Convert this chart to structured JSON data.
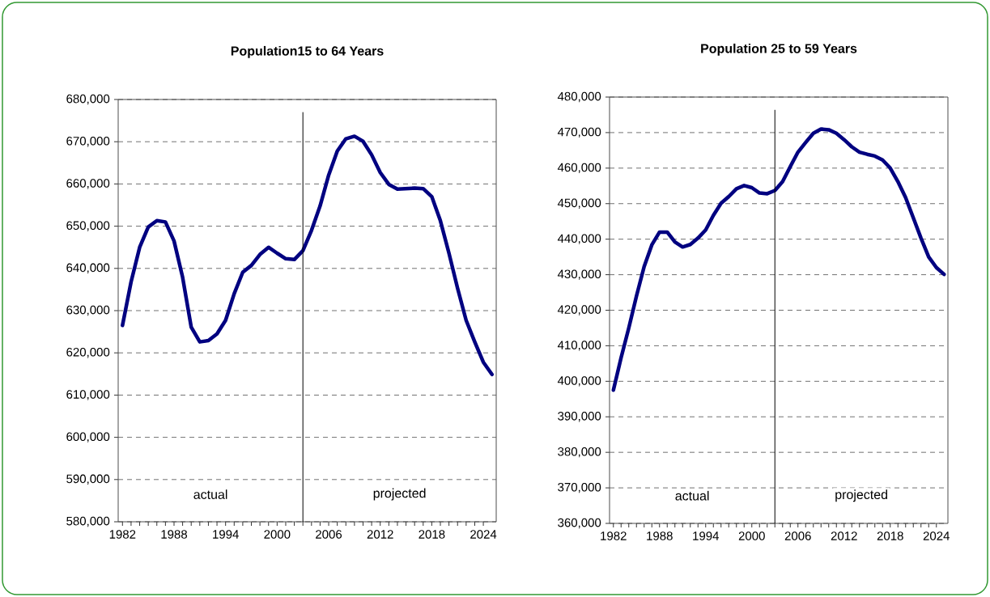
{
  "chart_data": [
    {
      "type": "line",
      "title": "Population15 to 64 Years",
      "x": [
        1982,
        1983,
        1984,
        1985,
        1986,
        1987,
        1988,
        1989,
        1990,
        1991,
        1992,
        1993,
        1994,
        1995,
        1996,
        1997,
        1998,
        1999,
        2000,
        2001,
        2002,
        2003,
        2004,
        2005,
        2006,
        2007,
        2008,
        2009,
        2010,
        2011,
        2012,
        2013,
        2014,
        2015,
        2016,
        2017,
        2018,
        2019,
        2020,
        2021,
        2022,
        2023,
        2024,
        2025
      ],
      "series": [
        {
          "color": "#000080",
          "values": [
            626500,
            636800,
            645000,
            649800,
            651300,
            651000,
            646500,
            637900,
            626100,
            622600,
            622900,
            624500,
            627700,
            634000,
            639100,
            640700,
            643300,
            645000,
            643600,
            642300,
            642100,
            644200,
            649000,
            654800,
            662100,
            667800,
            670700,
            671300,
            670100,
            666900,
            662700,
            659900,
            658800,
            658900,
            659000,
            658900,
            657000,
            651300,
            643600,
            635300,
            627700,
            622600,
            617800,
            614900
          ]
        }
      ],
      "xlim": [
        1981.5,
        2025.5
      ],
      "ylim": [
        580000,
        680000
      ],
      "xticks": [
        1982,
        1988,
        1994,
        2000,
        2006,
        2012,
        2018,
        2024
      ],
      "yticks": [
        {
          "value": 580000,
          "label": "580,000"
        },
        {
          "value": 590000,
          "label": "590,000"
        },
        {
          "value": 600000,
          "label": "600,000"
        },
        {
          "value": 610000,
          "label": "610,000"
        },
        {
          "value": 620000,
          "label": "620,000"
        },
        {
          "value": 630000,
          "label": "630,000"
        },
        {
          "value": 640000,
          "label": "640,000"
        },
        {
          "value": 650000,
          "label": "650,000"
        },
        {
          "value": 660000,
          "label": "660,000"
        },
        {
          "value": 670000,
          "label": "670,000"
        },
        {
          "value": 680000,
          "label": "680,000"
        }
      ],
      "grid": "y",
      "ref_lines": [
        {
          "axis": "x",
          "value": 2003,
          "color": "#000000"
        }
      ],
      "annotations": [
        "actual",
        "projected"
      ]
    },
    {
      "type": "line",
      "title": "Population 25 to 59 Years",
      "x": [
        1982,
        1983,
        1984,
        1985,
        1986,
        1987,
        1988,
        1989,
        1990,
        1991,
        1992,
        1993,
        1994,
        1995,
        1996,
        1997,
        1998,
        1999,
        2000,
        2001,
        2002,
        2003,
        2004,
        2005,
        2006,
        2007,
        2008,
        2009,
        2010,
        2011,
        2012,
        2013,
        2014,
        2015,
        2016,
        2017,
        2018,
        2019,
        2020,
        2021,
        2022,
        2023,
        2024,
        2025
      ],
      "series": [
        {
          "color": "#000080",
          "values": [
            397500,
            406600,
            415000,
            424000,
            432300,
            438400,
            442000,
            442000,
            439200,
            437800,
            438500,
            440300,
            442600,
            446700,
            450100,
            452000,
            454200,
            455100,
            454500,
            453000,
            452800,
            453700,
            456200,
            460400,
            464500,
            467200,
            469800,
            471000,
            470800,
            469800,
            468000,
            466000,
            464500,
            463900,
            463400,
            462300,
            460000,
            456200,
            451700,
            446000,
            440300,
            435000,
            432000,
            430100
          ]
        }
      ],
      "xlim": [
        1981.5,
        2025.5
      ],
      "ylim": [
        360000,
        480000
      ],
      "xticks": [
        1982,
        1988,
        1994,
        2000,
        2006,
        2012,
        2018,
        2024
      ],
      "yticks": [
        {
          "value": 360000,
          "label": "360,000"
        },
        {
          "value": 370000,
          "label": "370,000"
        },
        {
          "value": 380000,
          "label": "380,000"
        },
        {
          "value": 390000,
          "label": "390,000"
        },
        {
          "value": 400000,
          "label": "400,000"
        },
        {
          "value": 410000,
          "label": "410,000"
        },
        {
          "value": 420000,
          "label": "420,000"
        },
        {
          "value": 430000,
          "label": "430,000"
        },
        {
          "value": 440000,
          "label": "440,000"
        },
        {
          "value": 450000,
          "label": "450,000"
        },
        {
          "value": 460000,
          "label": "460,000"
        },
        {
          "value": 470000,
          "label": "470,000"
        },
        {
          "value": 480000,
          "label": "480,000"
        }
      ],
      "grid": "y",
      "ref_lines": [
        {
          "axis": "x",
          "value": 2003,
          "color": "#000000"
        }
      ],
      "annotations": [
        "actual",
        "projected"
      ]
    }
  ]
}
